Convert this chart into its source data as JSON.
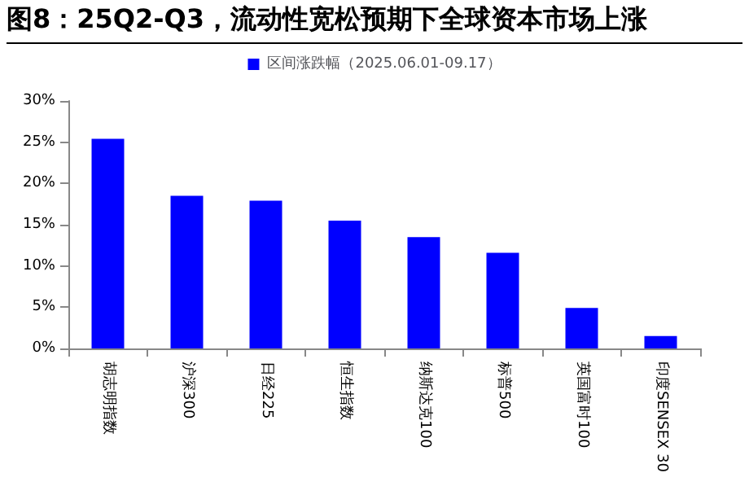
{
  "chart_data": {
    "type": "bar",
    "title": "图8：25Q2-Q3，流动性宽松预期下全球资本市场上涨",
    "categories": [
      "胡志明指数",
      "沪深300",
      "日经225",
      "恒生指数",
      "纳斯达克100",
      "标普500",
      "英国富时100",
      "印度SENSEX 30"
    ],
    "series": [
      {
        "name": "区间涨跌幅（2025.06.01-09.17）",
        "color": "#0000ff",
        "values": [
          25.4,
          18.5,
          17.9,
          15.5,
          13.5,
          11.6,
          4.9,
          1.5
        ]
      }
    ],
    "ylim": [
      0,
      30
    ],
    "yticks": [
      {
        "value": 0,
        "label": "0%"
      },
      {
        "value": 5,
        "label": "5%"
      },
      {
        "value": 10,
        "label": "10%"
      },
      {
        "value": 15,
        "label": "15%"
      },
      {
        "value": 20,
        "label": "20%"
      },
      {
        "value": 25,
        "label": "25%"
      },
      {
        "value": 30,
        "label": "30%"
      }
    ],
    "grid": false,
    "legend": "top"
  }
}
